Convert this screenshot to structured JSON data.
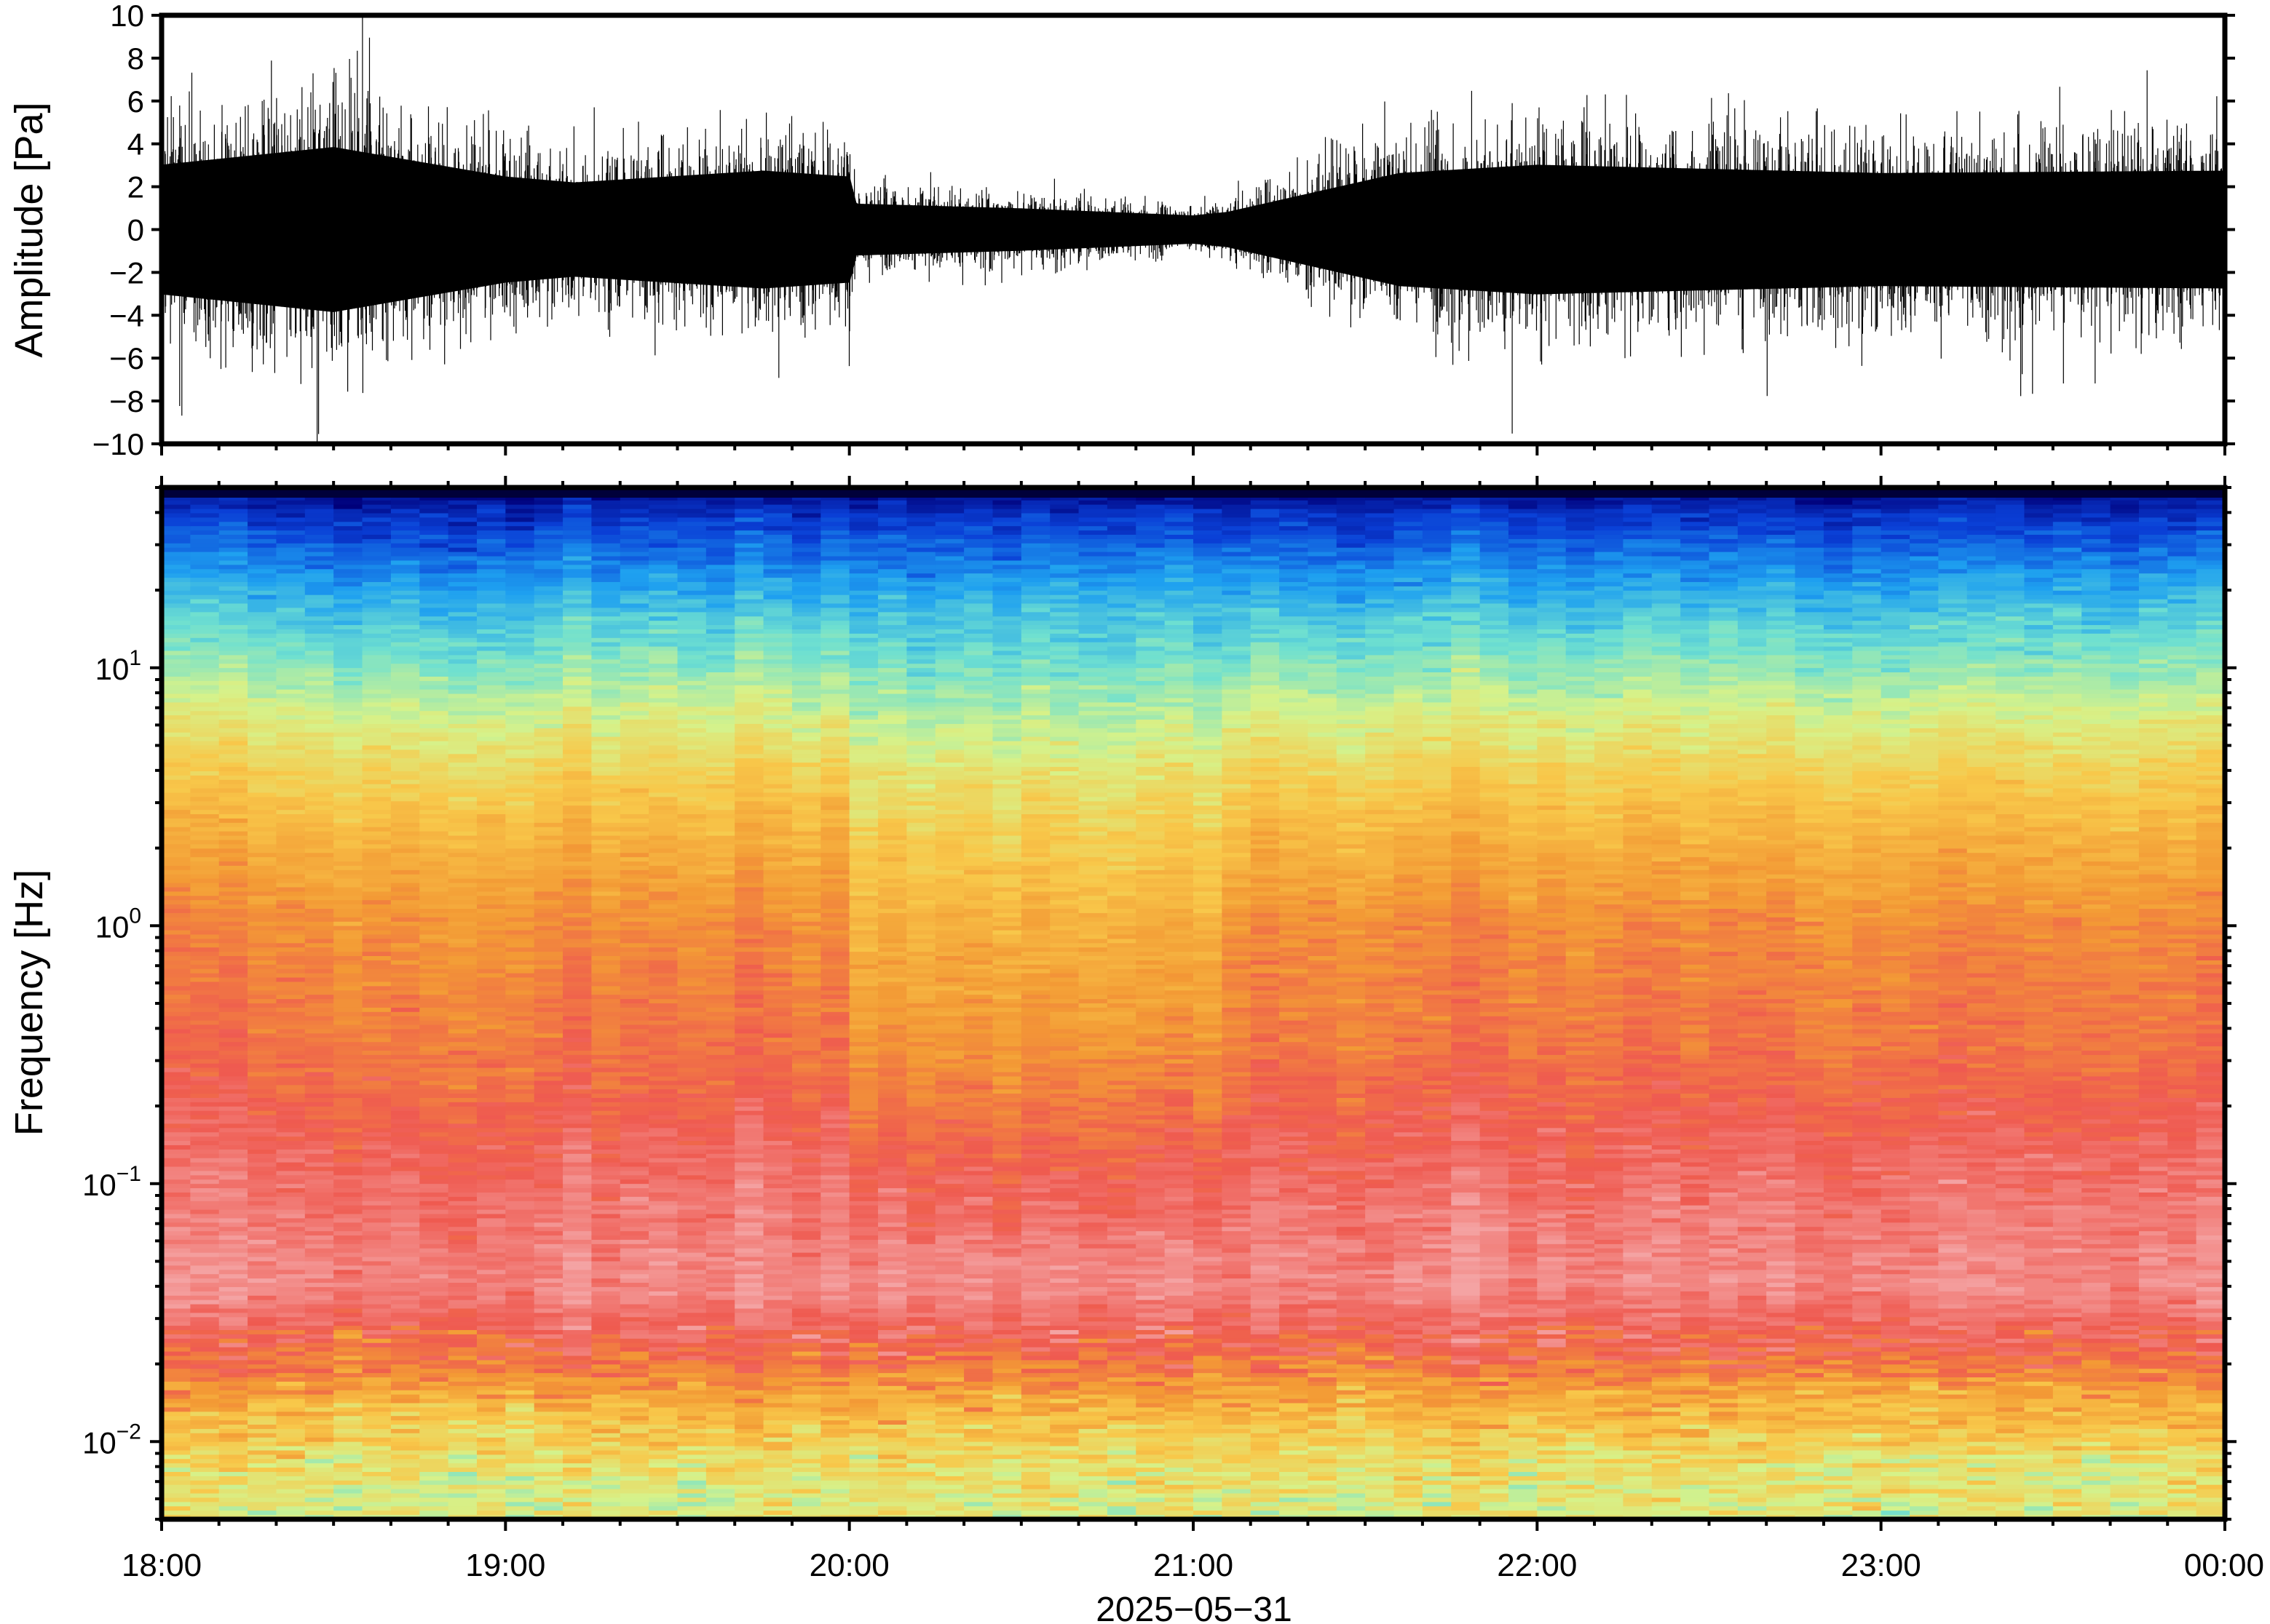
{
  "chart_data": [
    {
      "type": "line",
      "ylabel": "Amplitude [Pa]",
      "ylim": [
        -10,
        10
      ],
      "y_ticks": [
        "10",
        "8",
        "6",
        "4",
        "2",
        "0",
        "−2",
        "−4",
        "−6",
        "−8",
        "−10"
      ],
      "y_tick_values": [
        10,
        8,
        6,
        4,
        2,
        0,
        -2,
        -4,
        -6,
        -8,
        -10
      ],
      "xlim": [
        "18:00",
        "00:00"
      ],
      "envelope_hours": [
        0,
        0.5,
        1.0,
        1.2,
        1.75,
        2.0,
        2.02,
        2.5,
        3.0,
        3.1,
        3.6,
        4.0,
        5.0,
        6.0
      ],
      "envelope_amplitude_pa": [
        5.5,
        7.0,
        4.5,
        4.0,
        5.0,
        4.5,
        2.2,
        1.8,
        1.2,
        1.5,
        4.8,
        5.5,
        4.8,
        5.0
      ],
      "grid": false
    },
    {
      "type": "heatmap",
      "ylabel": "Frequency [Hz]",
      "xlabel": "2025−05−31",
      "y_scale": "log",
      "ylim": [
        0.005,
        50
      ],
      "y_ticks": [
        {
          "base": "10",
          "exp": "1",
          "value": 10
        },
        {
          "base": "10",
          "exp": "0",
          "value": 1
        },
        {
          "base": "10",
          "exp": "−1",
          "value": 0.1
        },
        {
          "base": "10",
          "exp": "−2",
          "value": 0.01
        }
      ],
      "x_ticks": [
        "18:00",
        "19:00",
        "20:00",
        "21:00",
        "22:00",
        "23:00",
        "00:00"
      ],
      "x_tick_hours": [
        0,
        1,
        2,
        3,
        4,
        5,
        6
      ],
      "colormap": [
        "#00007a",
        "#0a3fd6",
        "#1ea0f0",
        "#6fe0d0",
        "#d6f28a",
        "#f8c84a",
        "#f39a35",
        "#ef5a50",
        "#f4a3a3"
      ],
      "quiet_interval_hours": [
        2.0,
        3.12
      ],
      "grid": false
    }
  ]
}
